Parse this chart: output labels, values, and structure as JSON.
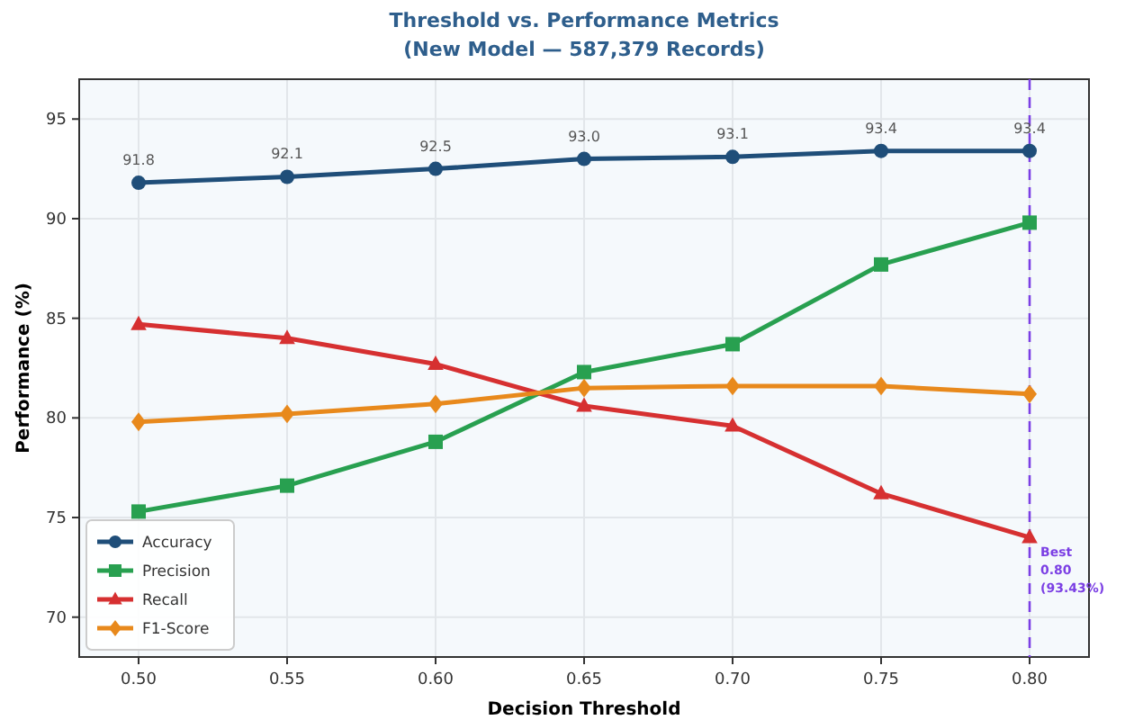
{
  "chart_data": {
    "type": "line",
    "title": "Threshold vs. Performance Metrics",
    "subtitle": "(New Model — 587,379 Records)",
    "xlabel": "Decision Threshold",
    "ylabel": "Performance (%)",
    "x": [
      0.5,
      0.55,
      0.6,
      0.65,
      0.7,
      0.75,
      0.8
    ],
    "series": [
      {
        "name": "Accuracy",
        "color": "#1f4e79",
        "marker": "circle",
        "values": [
          91.8,
          92.1,
          92.5,
          93.0,
          93.1,
          93.4,
          93.4
        ],
        "value_labels": [
          "91.8",
          "92.1",
          "92.5",
          "93.0",
          "93.1",
          "93.4",
          "93.4"
        ]
      },
      {
        "name": "Precision",
        "color": "#28a050",
        "marker": "square",
        "values": [
          75.3,
          76.6,
          78.8,
          82.3,
          83.7,
          87.7,
          89.8
        ]
      },
      {
        "name": "Recall",
        "color": "#d63031",
        "marker": "triangle",
        "values": [
          84.7,
          84.0,
          82.7,
          80.6,
          79.6,
          76.2,
          74.0
        ]
      },
      {
        "name": "F1-Score",
        "color": "#e8891c",
        "marker": "diamond",
        "values": [
          79.8,
          80.2,
          80.7,
          81.5,
          81.6,
          81.6,
          81.2
        ]
      }
    ],
    "xlim": [
      0.48,
      0.82
    ],
    "xticks": [
      {
        "value": 0.5,
        "label": "0.50"
      },
      {
        "value": 0.55,
        "label": "0.55"
      },
      {
        "value": 0.6,
        "label": "0.60"
      },
      {
        "value": 0.65,
        "label": "0.65"
      },
      {
        "value": 0.7,
        "label": "0.70"
      },
      {
        "value": 0.75,
        "label": "0.75"
      },
      {
        "value": 0.8,
        "label": "0.80"
      }
    ],
    "ylim": [
      68,
      97
    ],
    "yticks": [
      70,
      75,
      80,
      85,
      90,
      95
    ],
    "ref_lines": [
      {
        "axis": "x",
        "value": 0.8,
        "label": "Best\n0.80\n(93.43%)",
        "color": "#7b3fe4",
        "line_style": "dashed"
      }
    ],
    "grid": true,
    "legend": "bottom left"
  }
}
